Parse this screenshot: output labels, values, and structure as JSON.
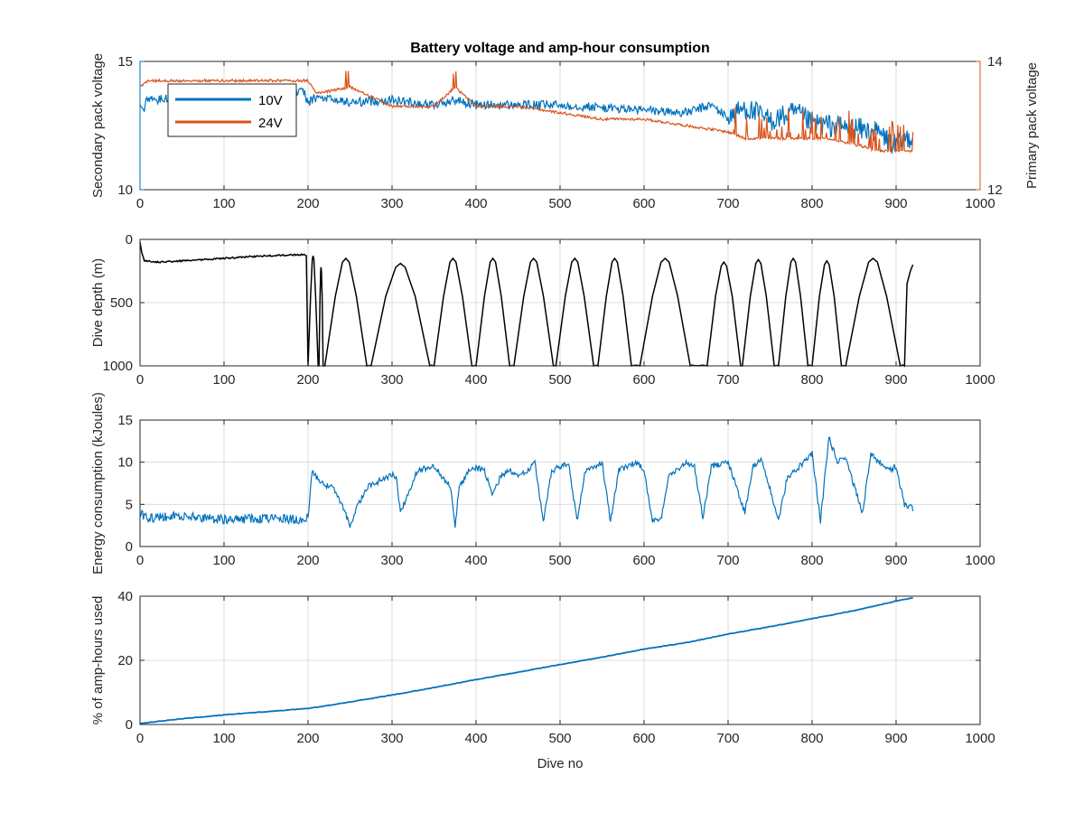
{
  "figure_title": "Battery voltage and amp-hour consumption",
  "colors": {
    "v10": "#0072BD",
    "v24": "#D95319",
    "depth": "#000000",
    "energy": "#0072BD",
    "amphours": "#0072BD",
    "grid": "#dcdcdc",
    "axis": "#262626"
  },
  "chart_data": [
    {
      "type": "line",
      "title": "Battery voltage and amp-hour consumption",
      "xlabel": "",
      "xlim": [
        0,
        1000
      ],
      "xticks": [
        "0",
        "100",
        "200",
        "300",
        "400",
        "500",
        "600",
        "700",
        "800",
        "900",
        "1000"
      ],
      "ylabel_left": "Secondary pack voltage",
      "ylim_left": [
        10,
        15
      ],
      "yticks_left": [
        "10",
        "15"
      ],
      "ylabel_right": "Primary pack voltage",
      "ylim_right": [
        12,
        14
      ],
      "yticks_right": [
        "12",
        "14"
      ],
      "grid": true,
      "legend": "top-left",
      "series": [
        {
          "name": "10V",
          "axis": "left",
          "x": [
            0,
            5,
            10,
            20,
            40,
            60,
            100,
            150,
            195,
            200,
            210,
            250,
            300,
            350,
            375,
            400,
            450,
            500,
            550,
            600,
            650,
            680,
            700,
            720,
            750,
            780,
            800,
            820,
            850,
            880,
            900,
            910,
            920
          ],
          "y": [
            13.2,
            13.2,
            13.6,
            13.5,
            13.6,
            13.7,
            13.8,
            13.8,
            13.8,
            13.4,
            13.6,
            13.4,
            13.5,
            13.3,
            13.5,
            13.3,
            13.3,
            13.3,
            13.2,
            13.1,
            13.0,
            13.3,
            12.8,
            13.2,
            12.7,
            13.0,
            12.6,
            12.5,
            12.4,
            12.2,
            11.7,
            12.0,
            12.1
          ]
        },
        {
          "name": "24V",
          "axis": "right",
          "x": [
            0,
            10,
            50,
            100,
            150,
            190,
            200,
            210,
            250,
            300,
            350,
            375,
            400,
            450,
            500,
            550,
            600,
            650,
            700,
            720,
            750,
            780,
            800,
            820,
            850,
            880,
            900,
            910,
            920
          ],
          "y": [
            13.6,
            13.7,
            13.7,
            13.7,
            13.7,
            13.7,
            13.7,
            13.5,
            13.6,
            13.3,
            13.3,
            13.6,
            13.3,
            13.3,
            13.2,
            13.1,
            13.1,
            13.0,
            12.9,
            12.8,
            12.8,
            12.8,
            12.8,
            12.8,
            12.7,
            12.6,
            12.6,
            12.6,
            12.6
          ]
        }
      ]
    },
    {
      "type": "line",
      "xlabel": "",
      "xlim": [
        0,
        1000
      ],
      "xticks": [
        "0",
        "100",
        "200",
        "300",
        "400",
        "500",
        "600",
        "700",
        "800",
        "900",
        "1000"
      ],
      "ylabel": "Dive depth (m)",
      "ylim": [
        0,
        1000
      ],
      "y_reversed": true,
      "yticks": [
        "0",
        "500",
        "1000"
      ],
      "grid": true,
      "series": [
        {
          "name": "",
          "color_key": "depth",
          "shallow_phase": {
            "x": [
              0,
              2,
              5,
              20,
              50,
              100,
              150,
              195
            ],
            "y": [
              20,
              100,
              170,
              180,
              170,
              150,
              130,
              120
            ]
          },
          "dives": [
            {
              "start": 200,
              "end": 212,
              "shallow": 130
            },
            {
              "start": 213,
              "end": 218,
              "shallow": 220
            },
            {
              "start": 220,
              "end": 270,
              "shallow": 150
            },
            {
              "start": 275,
              "end": 345,
              "shallow": 190
            },
            {
              "start": 350,
              "end": 395,
              "shallow": 150
            },
            {
              "start": 400,
              "end": 440,
              "shallow": 150
            },
            {
              "start": 445,
              "end": 492,
              "shallow": 150
            },
            {
              "start": 495,
              "end": 540,
              "shallow": 150
            },
            {
              "start": 545,
              "end": 585,
              "shallow": 150
            },
            {
              "start": 595,
              "end": 655,
              "shallow": 150
            },
            {
              "start": 675,
              "end": 715,
              "shallow": 180
            },
            {
              "start": 717,
              "end": 755,
              "shallow": 160
            },
            {
              "start": 760,
              "end": 795,
              "shallow": 150
            },
            {
              "start": 800,
              "end": 835,
              "shallow": 170
            },
            {
              "start": 840,
              "end": 905,
              "shallow": 150
            }
          ],
          "tail": {
            "x": [
              910,
              913,
              917,
              920
            ],
            "y": [
              1000,
              350,
              250,
              200
            ]
          }
        }
      ]
    },
    {
      "type": "line",
      "xlabel": "",
      "xlim": [
        0,
        1000
      ],
      "xticks": [
        "0",
        "100",
        "200",
        "300",
        "400",
        "500",
        "600",
        "700",
        "800",
        "900",
        "1000"
      ],
      "ylabel": "Energy consumption (kJoules)",
      "ylim": [
        0,
        15
      ],
      "yticks": [
        "0",
        "5",
        "10",
        "15"
      ],
      "grid": true,
      "series": [
        {
          "name": "",
          "x": [
            0,
            10,
            50,
            100,
            150,
            195,
            200,
            205,
            215,
            230,
            240,
            250,
            260,
            270,
            290,
            300,
            305,
            310,
            330,
            350,
            370,
            375,
            380,
            395,
            410,
            420,
            430,
            440,
            450,
            460,
            470,
            480,
            490,
            500,
            510,
            520,
            530,
            540,
            550,
            560,
            570,
            580,
            590,
            600,
            610,
            620,
            630,
            640,
            650,
            660,
            670,
            680,
            700,
            720,
            730,
            740,
            760,
            770,
            780,
            790,
            800,
            810,
            820,
            830,
            840,
            860,
            870,
            880,
            890,
            900,
            910,
            920
          ],
          "y": [
            3.8,
            3.4,
            3.6,
            3.2,
            3.3,
            3.2,
            3.5,
            9.0,
            7.5,
            7.0,
            5.0,
            2.5,
            5.0,
            7.0,
            8.0,
            8.5,
            8.2,
            4.0,
            9.0,
            9.5,
            7.0,
            2.5,
            7.0,
            9.5,
            9.0,
            6.0,
            8.5,
            9.0,
            8.5,
            8.8,
            10.0,
            3.0,
            9.0,
            9.5,
            10.0,
            3.0,
            9.0,
            9.5,
            10.0,
            3.0,
            9.0,
            9.5,
            10.0,
            9.0,
            3.0,
            3.2,
            8.5,
            9.0,
            10.0,
            9.5,
            3.5,
            9.5,
            10.0,
            4.0,
            9.5,
            10.5,
            3.0,
            8.0,
            9.0,
            10.0,
            11.0,
            3.0,
            13.0,
            10.0,
            10.5,
            4.0,
            11.0,
            10.0,
            9.0,
            9.5,
            5.0,
            4.5
          ]
        }
      ]
    },
    {
      "type": "line",
      "xlabel": "Dive no",
      "xlim": [
        0,
        1000
      ],
      "xticks": [
        "0",
        "100",
        "200",
        "300",
        "400",
        "500",
        "600",
        "700",
        "800",
        "900",
        "1000"
      ],
      "ylabel": "% of amp-hours used",
      "ylim": [
        0,
        40
      ],
      "yticks": [
        "0",
        "20",
        "40"
      ],
      "grid": true,
      "series": [
        {
          "name": "",
          "x": [
            0,
            50,
            100,
            150,
            200,
            250,
            300,
            350,
            400,
            450,
            500,
            550,
            600,
            650,
            700,
            750,
            800,
            850,
            900,
            920
          ],
          "y": [
            0.3,
            1.8,
            3.0,
            4.0,
            5.0,
            7.0,
            9.2,
            11.5,
            14.0,
            16.3,
            18.7,
            21.0,
            23.5,
            25.5,
            28.2,
            30.5,
            33.0,
            35.5,
            38.5,
            39.5
          ]
        }
      ]
    }
  ]
}
